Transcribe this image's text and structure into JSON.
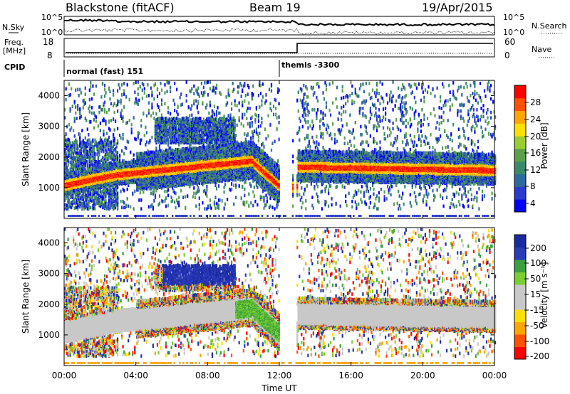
{
  "header": {
    "station": "Blackstone (fitACF)",
    "beam": "Beam 19",
    "date": "19/Apr/2015"
  },
  "noise_panel": {
    "left_label": "N.Sky",
    "right_label": "N.Search",
    "ticks": [
      "10^5",
      "10^0"
    ]
  },
  "freq_panel": {
    "left_label_1": "Freq.",
    "left_label_2": "[MHz]",
    "left_ticks": [
      "18",
      "8"
    ],
    "right_label": "Nave",
    "right_ticks": [
      "60",
      "0"
    ]
  },
  "cpid_panel": {
    "label": "CPID",
    "modes": [
      "normal (fast) 151",
      "themis -3300"
    ]
  },
  "chart_data": [
    {
      "type": "heatmap",
      "name": "power",
      "ylabel": "Slant Range [km]",
      "xlabel": "",
      "yticks": [
        "4000",
        "3000",
        "2000",
        "1000"
      ],
      "ylim": [
        0,
        4500
      ],
      "xlim": [
        0,
        24
      ],
      "colorbar_label": "Power [dB]",
      "colorbar_ticks": [
        "28",
        "24",
        "20",
        "16",
        "12",
        "8",
        "4"
      ],
      "colors": [
        "#0000ff",
        "#2a3ad0",
        "#2e6a9e",
        "#3a8a6a",
        "#5aa04a",
        "#9acd32",
        "#ffe000",
        "#ffa500",
        "#ff5000",
        "#ff0000"
      ]
    },
    {
      "type": "heatmap",
      "name": "velocity",
      "ylabel": "Slant Range [km]",
      "xlabel": "Time UT",
      "yticks": [
        "4000",
        "3000",
        "2000",
        "1000"
      ],
      "ylim": [
        0,
        4500
      ],
      "xlim": [
        0,
        24
      ],
      "xticks": [
        "00:00",
        "04:00",
        "08:00",
        "12:00",
        "16:00",
        "20:00",
        "00:00"
      ],
      "colorbar_label": "Velocity [m s⁻¹]",
      "colorbar_ticks": [
        "200",
        "100",
        "50",
        "15",
        "-15",
        "-50",
        "-100",
        "-200"
      ],
      "colors": [
        "#ff0000",
        "#ff5000",
        "#ffa500",
        "#ffe000",
        "#c8c8c8",
        "#c8c8c8",
        "#7acd32",
        "#3aa040",
        "#2a3ab8",
        "#1a2aa0"
      ]
    }
  ]
}
